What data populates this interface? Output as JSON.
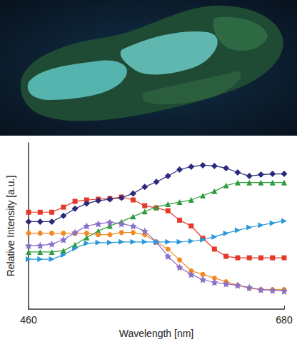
{
  "chart_data": {
    "type": "line",
    "x_label": "Wavelength [nm]",
    "y_label": "Relative Intensity [a.u.]",
    "x": [
      460,
      470,
      480,
      490,
      500,
      510,
      520,
      530,
      540,
      550,
      560,
      570,
      580,
      590,
      600,
      610,
      620,
      630,
      640,
      650,
      660,
      670,
      680
    ],
    "xlim": [
      460,
      680
    ],
    "xticks": [
      460,
      680
    ],
    "ylim": [
      0,
      230
    ],
    "tick_labels": "x",
    "grid": false,
    "series": [
      {
        "color": "#e5392b",
        "marker": "square",
        "values": [
          134,
          134,
          134,
          141,
          149,
          151,
          152,
          153,
          155,
          151,
          143,
          140,
          136,
          123,
          115,
          98,
          83,
          73,
          71,
          71,
          71,
          71,
          71
        ]
      },
      {
        "color": "#2b2a7c",
        "marker": "diamond",
        "values": [
          121,
          121,
          121,
          129,
          139,
          146,
          150,
          152,
          154,
          160,
          169,
          176,
          184,
          193,
          197,
          199,
          198,
          195,
          189,
          184,
          186,
          187,
          187
        ]
      },
      {
        "color": "#2e9c3c",
        "marker": "triangle",
        "values": [
          79,
          79,
          79,
          81,
          89,
          99,
          108,
          115,
          121,
          128,
          135,
          141,
          145,
          148,
          151,
          157,
          163,
          171,
          175,
          175,
          175,
          175,
          175
        ]
      },
      {
        "color": "#f08a24",
        "marker": "circle",
        "values": [
          105,
          105,
          105,
          105,
          105,
          105,
          103,
          103,
          106,
          106,
          103,
          93,
          83,
          68,
          53,
          48,
          43,
          38,
          33,
          29,
          27,
          27,
          27
        ]
      },
      {
        "color": "#8b70c9",
        "marker": "star",
        "values": [
          88,
          88,
          90,
          96,
          106,
          115,
          118,
          120,
          118,
          115,
          108,
          93,
          73,
          58,
          48,
          41,
          37,
          35,
          33,
          30,
          27,
          26,
          25
        ]
      },
      {
        "color": "#2a98d8",
        "marker": "triangle-right",
        "values": [
          69,
          69,
          69,
          75,
          84,
          91,
          92,
          92,
          93,
          93,
          93,
          93,
          93,
          93,
          94,
          96,
          100,
          105,
          109,
          113,
          116,
          119,
          122
        ]
      }
    ]
  }
}
